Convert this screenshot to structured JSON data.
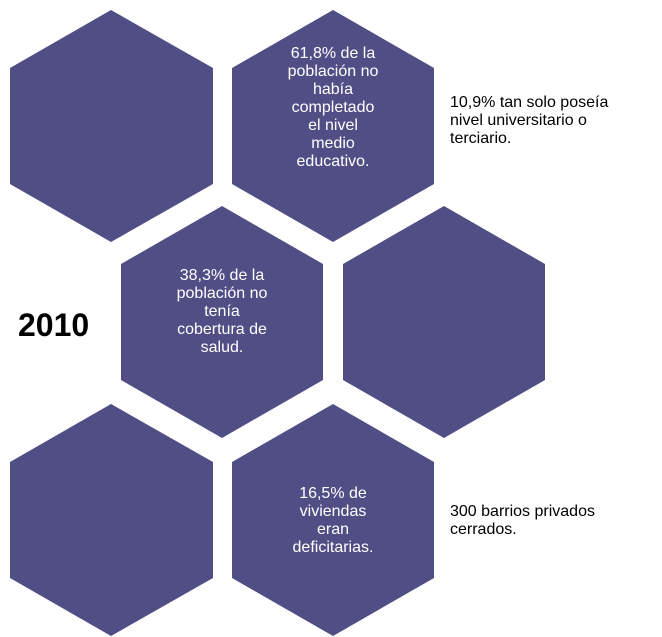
{
  "colors": {
    "hexagon_fill": "#514e86",
    "hex_text": "#ffffff",
    "side_text": "#000000"
  },
  "year": "2010",
  "hexagons": [
    {
      "name": "hex-top-left",
      "text": ""
    },
    {
      "name": "hex-top-middle",
      "text": "61,8% de la\npoblación no\nhabía\ncompletado\nel nivel\nmedio\neducativo."
    },
    {
      "name": "hex-middle-left",
      "text": "38,3% de la\npoblación no\ntenía\ncobertura de\nsalud."
    },
    {
      "name": "hex-middle-right",
      "text": ""
    },
    {
      "name": "hex-bottom-left",
      "text": ""
    },
    {
      "name": "hex-bottom-middle",
      "text": "16,5% de\nviviendas\neran\ndeficitarias."
    }
  ],
  "side_notes": [
    {
      "name": "note-university",
      "text": "10,9% tan solo poseía\nnivel universitario o\nterciario."
    },
    {
      "name": "note-private-neighborhoods",
      "text": "300 barrios privados\ncerrados."
    }
  ]
}
